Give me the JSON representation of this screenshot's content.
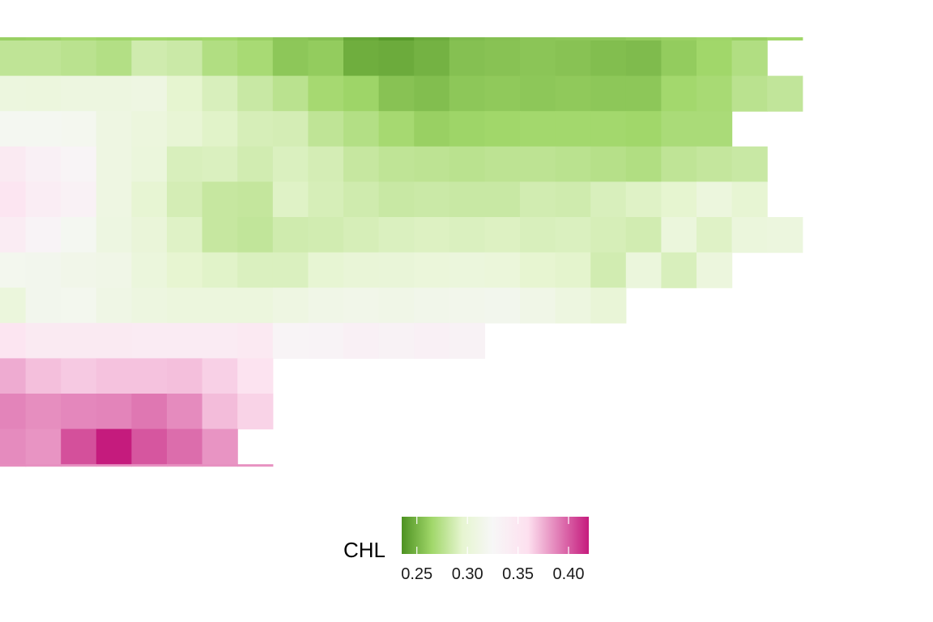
{
  "chart_data": {
    "type": "heatmap",
    "title": "",
    "xlabel": "",
    "ylabel": "",
    "legend": {
      "title": "CHL",
      "position": "bottom",
      "range": [
        0.235,
        0.42
      ],
      "ticks": [
        0.25,
        0.3,
        0.35,
        0.4
      ],
      "tick_labels": [
        "0.25",
        "0.30",
        "0.35",
        "0.40"
      ]
    },
    "colorscale": [
      [
        0.235,
        "#4d9221"
      ],
      [
        0.265,
        "#a1d76a"
      ],
      [
        0.295,
        "#e6f5d0"
      ],
      [
        0.325,
        "#f7f7f7"
      ],
      [
        0.36,
        "#fde0ef"
      ],
      [
        0.42,
        "#c51b7d"
      ]
    ],
    "rows": [
      [
        0.262,
        0.263,
        0.266,
        0.264,
        0.265,
        0.264,
        0.265,
        0.262,
        0.257,
        0.255,
        0.244,
        0.239,
        0.246,
        0.253,
        0.255,
        0.257,
        0.258,
        0.258,
        0.26,
        0.262,
        0.264,
        0.262,
        0.265,
        null,
        null
      ],
      [
        0.262,
        0.262,
        0.266,
        0.264,
        0.265,
        0.264,
        0.265,
        0.262,
        0.257,
        0.255,
        0.244,
        0.239,
        0.246,
        0.253,
        0.255,
        0.257,
        0.258,
        0.258,
        0.26,
        0.262,
        0.264,
        null,
        null,
        null,
        null
      ],
      [
        0.278,
        0.278,
        0.276,
        0.273,
        0.285,
        0.283,
        0.272,
        0.268,
        0.258,
        0.26,
        0.247,
        0.246,
        0.249,
        0.255,
        0.256,
        0.257,
        0.256,
        0.254,
        0.253,
        0.26,
        0.265,
        0.272,
        null,
        null,
        null
      ],
      [
        0.306,
        0.305,
        0.307,
        0.307,
        0.309,
        0.295,
        0.289,
        0.282,
        0.276,
        0.267,
        0.264,
        0.256,
        0.254,
        0.258,
        0.259,
        0.258,
        0.259,
        0.258,
        0.258,
        0.266,
        0.268,
        0.276,
        0.279,
        null,
        null
      ],
      [
        0.32,
        0.32,
        0.319,
        0.309,
        0.305,
        0.299,
        0.293,
        0.288,
        0.287,
        0.278,
        0.273,
        0.267,
        0.262,
        0.264,
        0.265,
        0.266,
        0.266,
        0.266,
        0.265,
        0.269,
        0.269,
        null,
        null,
        null,
        null
      ],
      [
        0.345,
        0.335,
        0.329,
        0.309,
        0.304,
        0.289,
        0.29,
        0.286,
        0.29,
        0.287,
        0.281,
        0.278,
        0.277,
        0.276,
        0.277,
        0.277,
        0.276,
        0.274,
        0.272,
        0.278,
        0.28,
        0.282,
        null,
        null,
        null
      ],
      [
        0.352,
        0.34,
        0.334,
        0.309,
        0.297,
        0.287,
        0.281,
        0.28,
        0.292,
        0.288,
        0.285,
        0.282,
        0.283,
        0.282,
        0.282,
        0.286,
        0.285,
        0.289,
        0.292,
        0.295,
        0.305,
        0.297,
        null,
        null,
        null
      ],
      [
        0.342,
        0.331,
        0.32,
        0.308,
        0.302,
        0.292,
        0.281,
        0.279,
        0.285,
        0.286,
        0.288,
        0.29,
        0.291,
        0.29,
        0.291,
        0.289,
        0.29,
        0.288,
        0.286,
        0.304,
        0.292,
        0.304,
        0.306,
        null,
        null
      ],
      [
        0.318,
        0.317,
        0.314,
        0.313,
        0.304,
        0.296,
        0.293,
        0.29,
        0.29,
        0.297,
        0.3,
        0.301,
        0.303,
        0.304,
        0.303,
        0.296,
        0.294,
        0.286,
        0.304,
        0.289,
        0.305,
        null,
        null,
        null,
        null
      ],
      [
        0.304,
        0.317,
        0.318,
        0.311,
        0.307,
        0.305,
        0.305,
        0.305,
        0.309,
        0.313,
        0.314,
        0.313,
        0.315,
        0.316,
        0.317,
        0.313,
        0.307,
        0.3,
        null,
        null,
        null,
        null,
        null,
        null,
        null
      ],
      [
        0.352,
        0.345,
        0.345,
        0.345,
        0.344,
        0.343,
        0.343,
        0.347,
        0.33,
        0.331,
        0.335,
        0.333,
        0.335,
        0.332,
        null,
        null,
        null,
        null,
        null,
        null,
        null,
        null,
        null,
        null,
        null
      ],
      [
        0.376,
        0.37,
        0.367,
        0.369,
        0.369,
        0.37,
        0.365,
        0.356,
        null,
        null,
        null,
        null,
        null,
        null,
        null,
        null,
        null,
        null,
        null,
        null,
        null,
        null,
        null,
        null,
        null
      ],
      [
        0.388,
        0.385,
        0.387,
        0.388,
        0.392,
        0.386,
        0.371,
        0.364,
        null,
        null,
        null,
        null,
        null,
        null,
        null,
        null,
        null,
        null,
        null,
        null,
        null,
        null,
        null,
        null,
        null
      ],
      [
        0.386,
        0.383,
        0.404,
        0.42,
        0.402,
        0.395,
        0.383,
        null,
        null,
        null,
        null,
        null,
        null,
        null,
        null,
        null,
        null,
        null,
        null,
        null,
        null,
        null,
        null,
        null,
        null
      ],
      [
        0.385,
        0.384,
        0.384,
        0.384,
        0.384,
        0.384,
        0.384,
        0.384,
        null,
        null,
        null,
        null,
        null,
        null,
        null,
        null,
        null,
        null,
        null,
        null,
        null,
        null,
        null,
        null,
        null
      ]
    ]
  }
}
